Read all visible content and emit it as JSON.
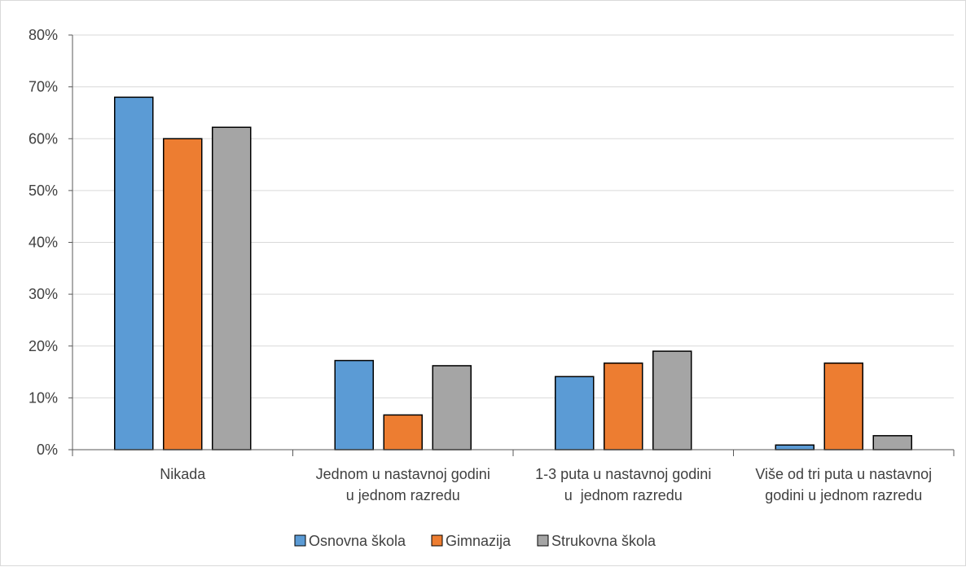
{
  "chart_data": {
    "type": "bar",
    "categories": [
      [
        "Nikada"
      ],
      [
        "Jednom u nastavnoj godini",
        "u jednom razredu"
      ],
      [
        "1-3 puta u nastavnoj godini",
        "u  jednom razredu"
      ],
      [
        "Više od tri puta u nastavnoj",
        "godini u jednom razredu"
      ]
    ],
    "series": [
      {
        "name": "Osnovna škola",
        "color": "#5b9bd5",
        "values": [
          68,
          17.2,
          14.1,
          0.9
        ]
      },
      {
        "name": "Gimnazija",
        "color": "#ed7d31",
        "values": [
          60,
          6.7,
          16.7,
          16.7
        ]
      },
      {
        "name": "Strukovna škola",
        "color": "#a5a5a5",
        "values": [
          62.2,
          16.2,
          19,
          2.7
        ]
      }
    ],
    "ylim": [
      0,
      80
    ],
    "yticks": [
      "0%",
      "10%",
      "20%",
      "30%",
      "40%",
      "50%",
      "60%",
      "70%",
      "80%"
    ],
    "grid": true,
    "legend_position": "bottom"
  }
}
